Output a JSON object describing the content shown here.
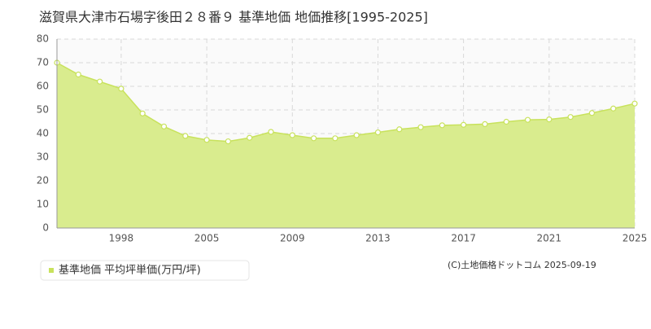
{
  "chart_data": {
    "type": "area",
    "title": "滋賀県大津市石場字後田２８番９ 基準地価 地価推移[1995-2025]",
    "categories": [
      null,
      null,
      null,
      "1998",
      null,
      null,
      null,
      "2005",
      null,
      null,
      null,
      "2009",
      null,
      null,
      null,
      "2013",
      null,
      null,
      null,
      "2017",
      null,
      null,
      null,
      "2021",
      null,
      null,
      null,
      "2025"
    ],
    "series": [
      {
        "name": "基準地価 平均坪単価(万円/坪)",
        "color": "#c8e25c",
        "values": [
          70,
          65,
          62,
          59,
          48.5,
          43,
          39,
          37.3,
          36.7,
          38.2,
          40.7,
          39.3,
          38,
          38,
          39.3,
          40.5,
          41.8,
          42.7,
          43.5,
          43.7,
          44,
          45,
          45.8,
          46,
          47,
          48.7,
          50.6,
          52.7
        ]
      }
    ],
    "ylim": [
      0,
      80
    ],
    "yticks": [
      0,
      10,
      20,
      30,
      40,
      50,
      60,
      70,
      80
    ],
    "grid": true,
    "copyright": "(C)土地価格ドットコム 2025-09-19"
  }
}
